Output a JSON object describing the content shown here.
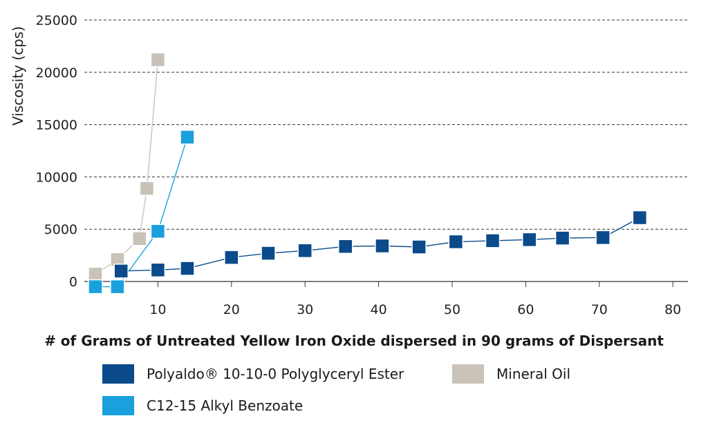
{
  "chart_data": {
    "type": "line",
    "ylabel": "Viscosity (cps)",
    "xlabel": "# of Grams of Untreated Yellow Iron Oxide dispersed in 90 grams of Dispersant",
    "xlim": [
      0,
      80
    ],
    "ylim": [
      0,
      25000
    ],
    "x_ticks": [
      "10",
      "20",
      "30",
      "40",
      "50",
      "60",
      "70",
      "80"
    ],
    "y_ticks": [
      "0",
      "5000",
      "10000",
      "15000",
      "20000",
      "25000"
    ],
    "grid": "horizontal dashed",
    "legend_position": "bottom",
    "series": [
      {
        "name": "Polyaldo® 10-10-0 Polyglyceryl Ester",
        "color": "#0b4a8b",
        "x": [
          5,
          10,
          14,
          20,
          25,
          30,
          35.5,
          40.5,
          45.5,
          50.5,
          55.5,
          60.5,
          65,
          70.5,
          75.5
        ],
        "y": [
          1000,
          1100,
          1250,
          2300,
          2700,
          2950,
          3350,
          3400,
          3300,
          3800,
          3900,
          4000,
          4150,
          4200,
          6100
        ]
      },
      {
        "name": "Mineral Oil",
        "color": "#c8c2b9",
        "x": [
          1.5,
          4.5,
          7.5,
          8.5,
          10
        ],
        "y": [
          700,
          2100,
          4100,
          8900,
          21200
        ]
      },
      {
        "name": "C12-15 Alkyl Benzoate",
        "color": "#1aa0dc",
        "x": [
          1.5,
          4.5,
          10,
          14
        ],
        "y": [
          -500,
          -500,
          4800,
          13800
        ]
      }
    ]
  },
  "legend": {
    "items": [
      {
        "label": "Polyaldo® 10-10-0 Polyglyceryl Ester",
        "color": "#0b4a8b"
      },
      {
        "label": "Mineral Oil",
        "color": "#c8c2b9"
      },
      {
        "label": "C12-15 Alkyl Benzoate",
        "color": "#1aa0dc"
      }
    ]
  }
}
